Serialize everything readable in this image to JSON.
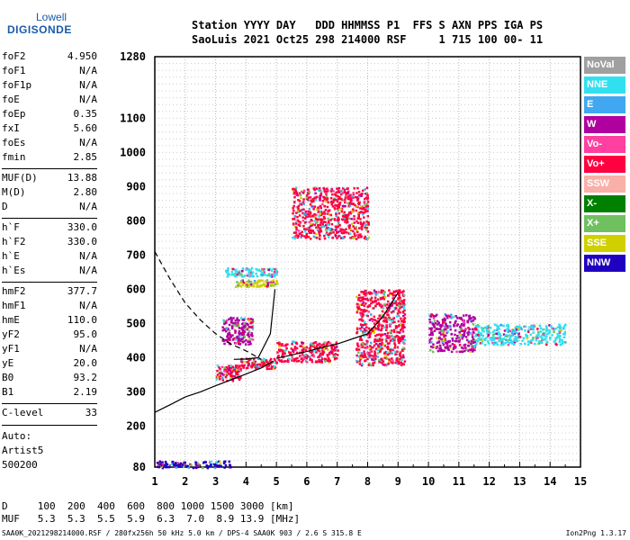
{
  "logo": {
    "line1": "Lowell",
    "line2": "DIGISONDE"
  },
  "header": {
    "line1": "Station YYYY DAY   DDD HHMMSS P1  FFS S AXN PPS IGA PS",
    "line2": "SaoLuis 2021 Oct25 298 214000 RSF     1 715 100 00- 11"
  },
  "params": [
    {
      "k": "foF2",
      "v": "4.950"
    },
    {
      "k": "foF1",
      "v": "N/A"
    },
    {
      "k": "foF1p",
      "v": "N/A"
    },
    {
      "k": "foE",
      "v": "N/A"
    },
    {
      "k": "foEp",
      "v": "0.35"
    },
    {
      "k": "fxI",
      "v": "5.60"
    },
    {
      "k": "foEs",
      "v": "N/A"
    },
    {
      "k": "fmin",
      "v": "2.85"
    },
    {
      "k": "MUF(D)",
      "v": "13.88"
    },
    {
      "k": "M(D)",
      "v": "2.80"
    },
    {
      "k": "D",
      "v": "N/A"
    },
    {
      "k": "h`F",
      "v": "330.0"
    },
    {
      "k": "h`F2",
      "v": "330.0"
    },
    {
      "k": "h`E",
      "v": "N/A"
    },
    {
      "k": "h`Es",
      "v": "N/A"
    },
    {
      "k": "hmF2",
      "v": "377.7"
    },
    {
      "k": "hmF1",
      "v": "N/A"
    },
    {
      "k": "hmE",
      "v": "110.0"
    },
    {
      "k": "yF2",
      "v": "95.0"
    },
    {
      "k": "yF1",
      "v": "N/A"
    },
    {
      "k": "yE",
      "v": "20.0"
    },
    {
      "k": "B0",
      "v": "93.2"
    },
    {
      "k": "B1",
      "v": "2.19"
    },
    {
      "k": "C-level",
      "v": "33"
    }
  ],
  "scaler": {
    "line1": "Auto:",
    "line2": "Artist5",
    "line3": "500200"
  },
  "bottom": {
    "line1": "D     100  200  400  600  800 1000 1500 3000 [km]",
    "line2": "MUF   5.3  5.3  5.5  5.9  6.3  7.0  8.9 13.9 [MHz]"
  },
  "footer": "SAA0K_2021298214000.RSF / 280fx256h 50 kHz 5.0 km / DPS-4 SAA0K 903 / 2.6 S 315.8 E",
  "version": "Ion2Png 1.3.17",
  "legend": [
    {
      "label": "NoVal",
      "color": "#a0a0a0"
    },
    {
      "label": "NNE",
      "color": "#30e0f0"
    },
    {
      "label": "E",
      "color": "#40a8f0"
    },
    {
      "label": "W",
      "color": "#b000a0"
    },
    {
      "label": "Vo-",
      "color": "#ff40a0"
    },
    {
      "label": "Vo+",
      "color": "#ff0040"
    },
    {
      "label": "SSW",
      "color": "#f8b0a8"
    },
    {
      "label": "X-",
      "color": "#008000"
    },
    {
      "label": "X+",
      "color": "#70c060"
    },
    {
      "label": "SSE",
      "color": "#d0d000"
    },
    {
      "label": "NNW",
      "color": "#2000c0"
    }
  ],
  "chart_data": {
    "type": "scatter",
    "title": "",
    "xlabel": "",
    "ylabel": "",
    "xlim": [
      1,
      15
    ],
    "ylim": [
      80,
      1280
    ],
    "x_ticks": [
      1,
      2,
      3,
      4,
      5,
      6,
      7,
      8,
      9,
      10,
      11,
      12,
      13,
      14,
      15
    ],
    "y_ticks": [
      80,
      200,
      300,
      400,
      500,
      600,
      700,
      800,
      900,
      1000,
      1100,
      1280
    ],
    "grid": true,
    "legend_placement": "right",
    "echo_clusters": [
      {
        "x": [
          3.0,
          3.8
        ],
        "y": [
          335,
          380
        ],
        "mode": "Vo+"
      },
      {
        "x": [
          3.8,
          5.0
        ],
        "y": [
          370,
          400
        ],
        "mode": "Vo+"
      },
      {
        "x": [
          5.0,
          7.0
        ],
        "y": [
          390,
          450
        ],
        "mode": "Vo+"
      },
      {
        "x": [
          7.6,
          9.2
        ],
        "y": [
          380,
          600
        ],
        "mode": "Vo+"
      },
      {
        "x": [
          3.2,
          4.2
        ],
        "y": [
          440,
          520
        ],
        "mode": "W"
      },
      {
        "x": [
          3.3,
          5.0
        ],
        "y": [
          640,
          665
        ],
        "mode": "NNE"
      },
      {
        "x": [
          3.6,
          5.0
        ],
        "y": [
          610,
          630
        ],
        "mode": "SSE"
      },
      {
        "x": [
          10.0,
          11.5
        ],
        "y": [
          420,
          530
        ],
        "mode": "W"
      },
      {
        "x": [
          11.5,
          14.5
        ],
        "y": [
          440,
          500
        ],
        "mode": "NNE"
      },
      {
        "x": [
          1.0,
          3.5
        ],
        "y": [
          80,
          100
        ],
        "mode": "NNW"
      },
      {
        "x": [
          5.5,
          8.0
        ],
        "y": [
          750,
          900
        ],
        "mode": "Vo+"
      }
    ],
    "traces": [
      {
        "name": "",
        "style": "solid",
        "x": [
          1.0,
          1.5,
          2.0,
          2.5,
          3.0,
          3.5,
          4.0,
          4.5,
          4.9
        ],
        "y": [
          240,
          262,
          285,
          300,
          318,
          335,
          352,
          370,
          390
        ]
      },
      {
        "name": "",
        "style": "solid",
        "x": [
          3.6,
          4.0,
          4.4,
          4.8,
          4.95
        ],
        "y": [
          395,
          396,
          400,
          470,
          600
        ]
      },
      {
        "name": "",
        "style": "dashed",
        "x": [
          1.0,
          1.5,
          2.0,
          2.5,
          3.0,
          3.5,
          4.0,
          4.5
        ],
        "y": [
          710,
          630,
          560,
          510,
          470,
          440,
          420,
          395
        ]
      },
      {
        "name": "",
        "style": "solid",
        "x": [
          5.0,
          5.5,
          6.0,
          6.5,
          7.0,
          7.5,
          8.0,
          8.5,
          9.0
        ],
        "y": [
          398,
          408,
          418,
          430,
          440,
          455,
          470,
          520,
          590
        ]
      }
    ]
  }
}
